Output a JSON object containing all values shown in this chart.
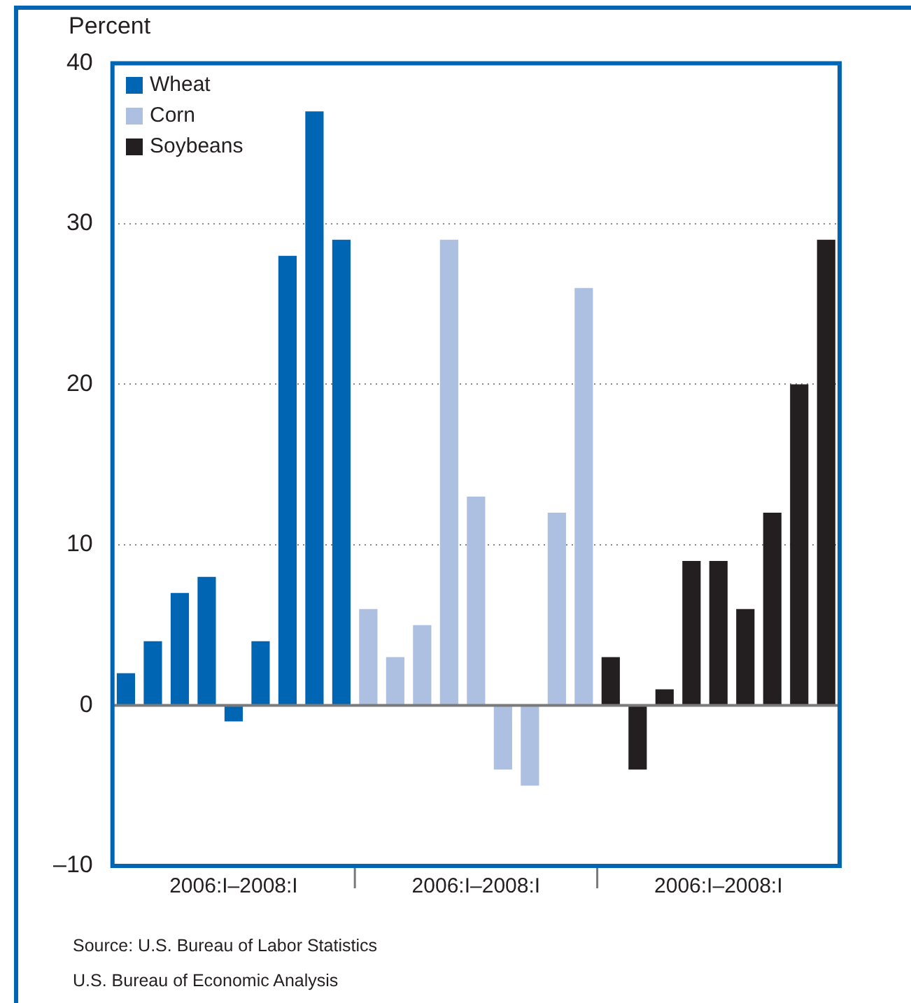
{
  "chart_data": {
    "type": "bar",
    "ylabel": "Percent",
    "categories": [
      null,
      null,
      null,
      null,
      "2006:I–2008:I",
      null,
      null,
      null,
      null,
      null,
      null,
      null,
      null,
      "2006:I–2008:I",
      null,
      null,
      null,
      null,
      null,
      null,
      null,
      null,
      "2006:I–2008:I",
      null,
      null,
      null,
      null
    ],
    "series": [
      {
        "name": "Wheat",
        "color": "#0066b3",
        "values": [
          2,
          4,
          7,
          8,
          -1,
          4,
          28,
          37,
          29,
          null,
          null,
          null,
          null,
          null,
          null,
          null,
          null,
          null,
          null,
          null,
          null,
          null,
          null,
          null,
          null,
          null,
          null
        ]
      },
      {
        "name": "Corn",
        "color": "#aec0e2",
        "values": [
          null,
          null,
          null,
          null,
          null,
          null,
          null,
          null,
          null,
          6,
          3,
          5,
          29,
          13,
          -4,
          -5,
          12,
          26,
          null,
          null,
          null,
          null,
          null,
          null,
          null,
          null,
          null
        ]
      },
      {
        "name": "Soybeans",
        "color": "#231f20",
        "values": [
          null,
          null,
          null,
          null,
          null,
          null,
          null,
          null,
          null,
          null,
          null,
          null,
          null,
          null,
          null,
          null,
          null,
          null,
          3,
          -4,
          1,
          9,
          9,
          6,
          12,
          20,
          29
        ]
      }
    ],
    "ylim": [
      -10,
      40
    ],
    "yticks": [
      {
        "value": -10,
        "label": "–10"
      },
      0,
      10,
      20,
      30,
      40
    ],
    "grid": "y",
    "legend": "top left",
    "annotations": [
      "Source: U.S. Bureau of Labor Statistics",
      "U.S. Bureau of Economic Analysis"
    ]
  }
}
